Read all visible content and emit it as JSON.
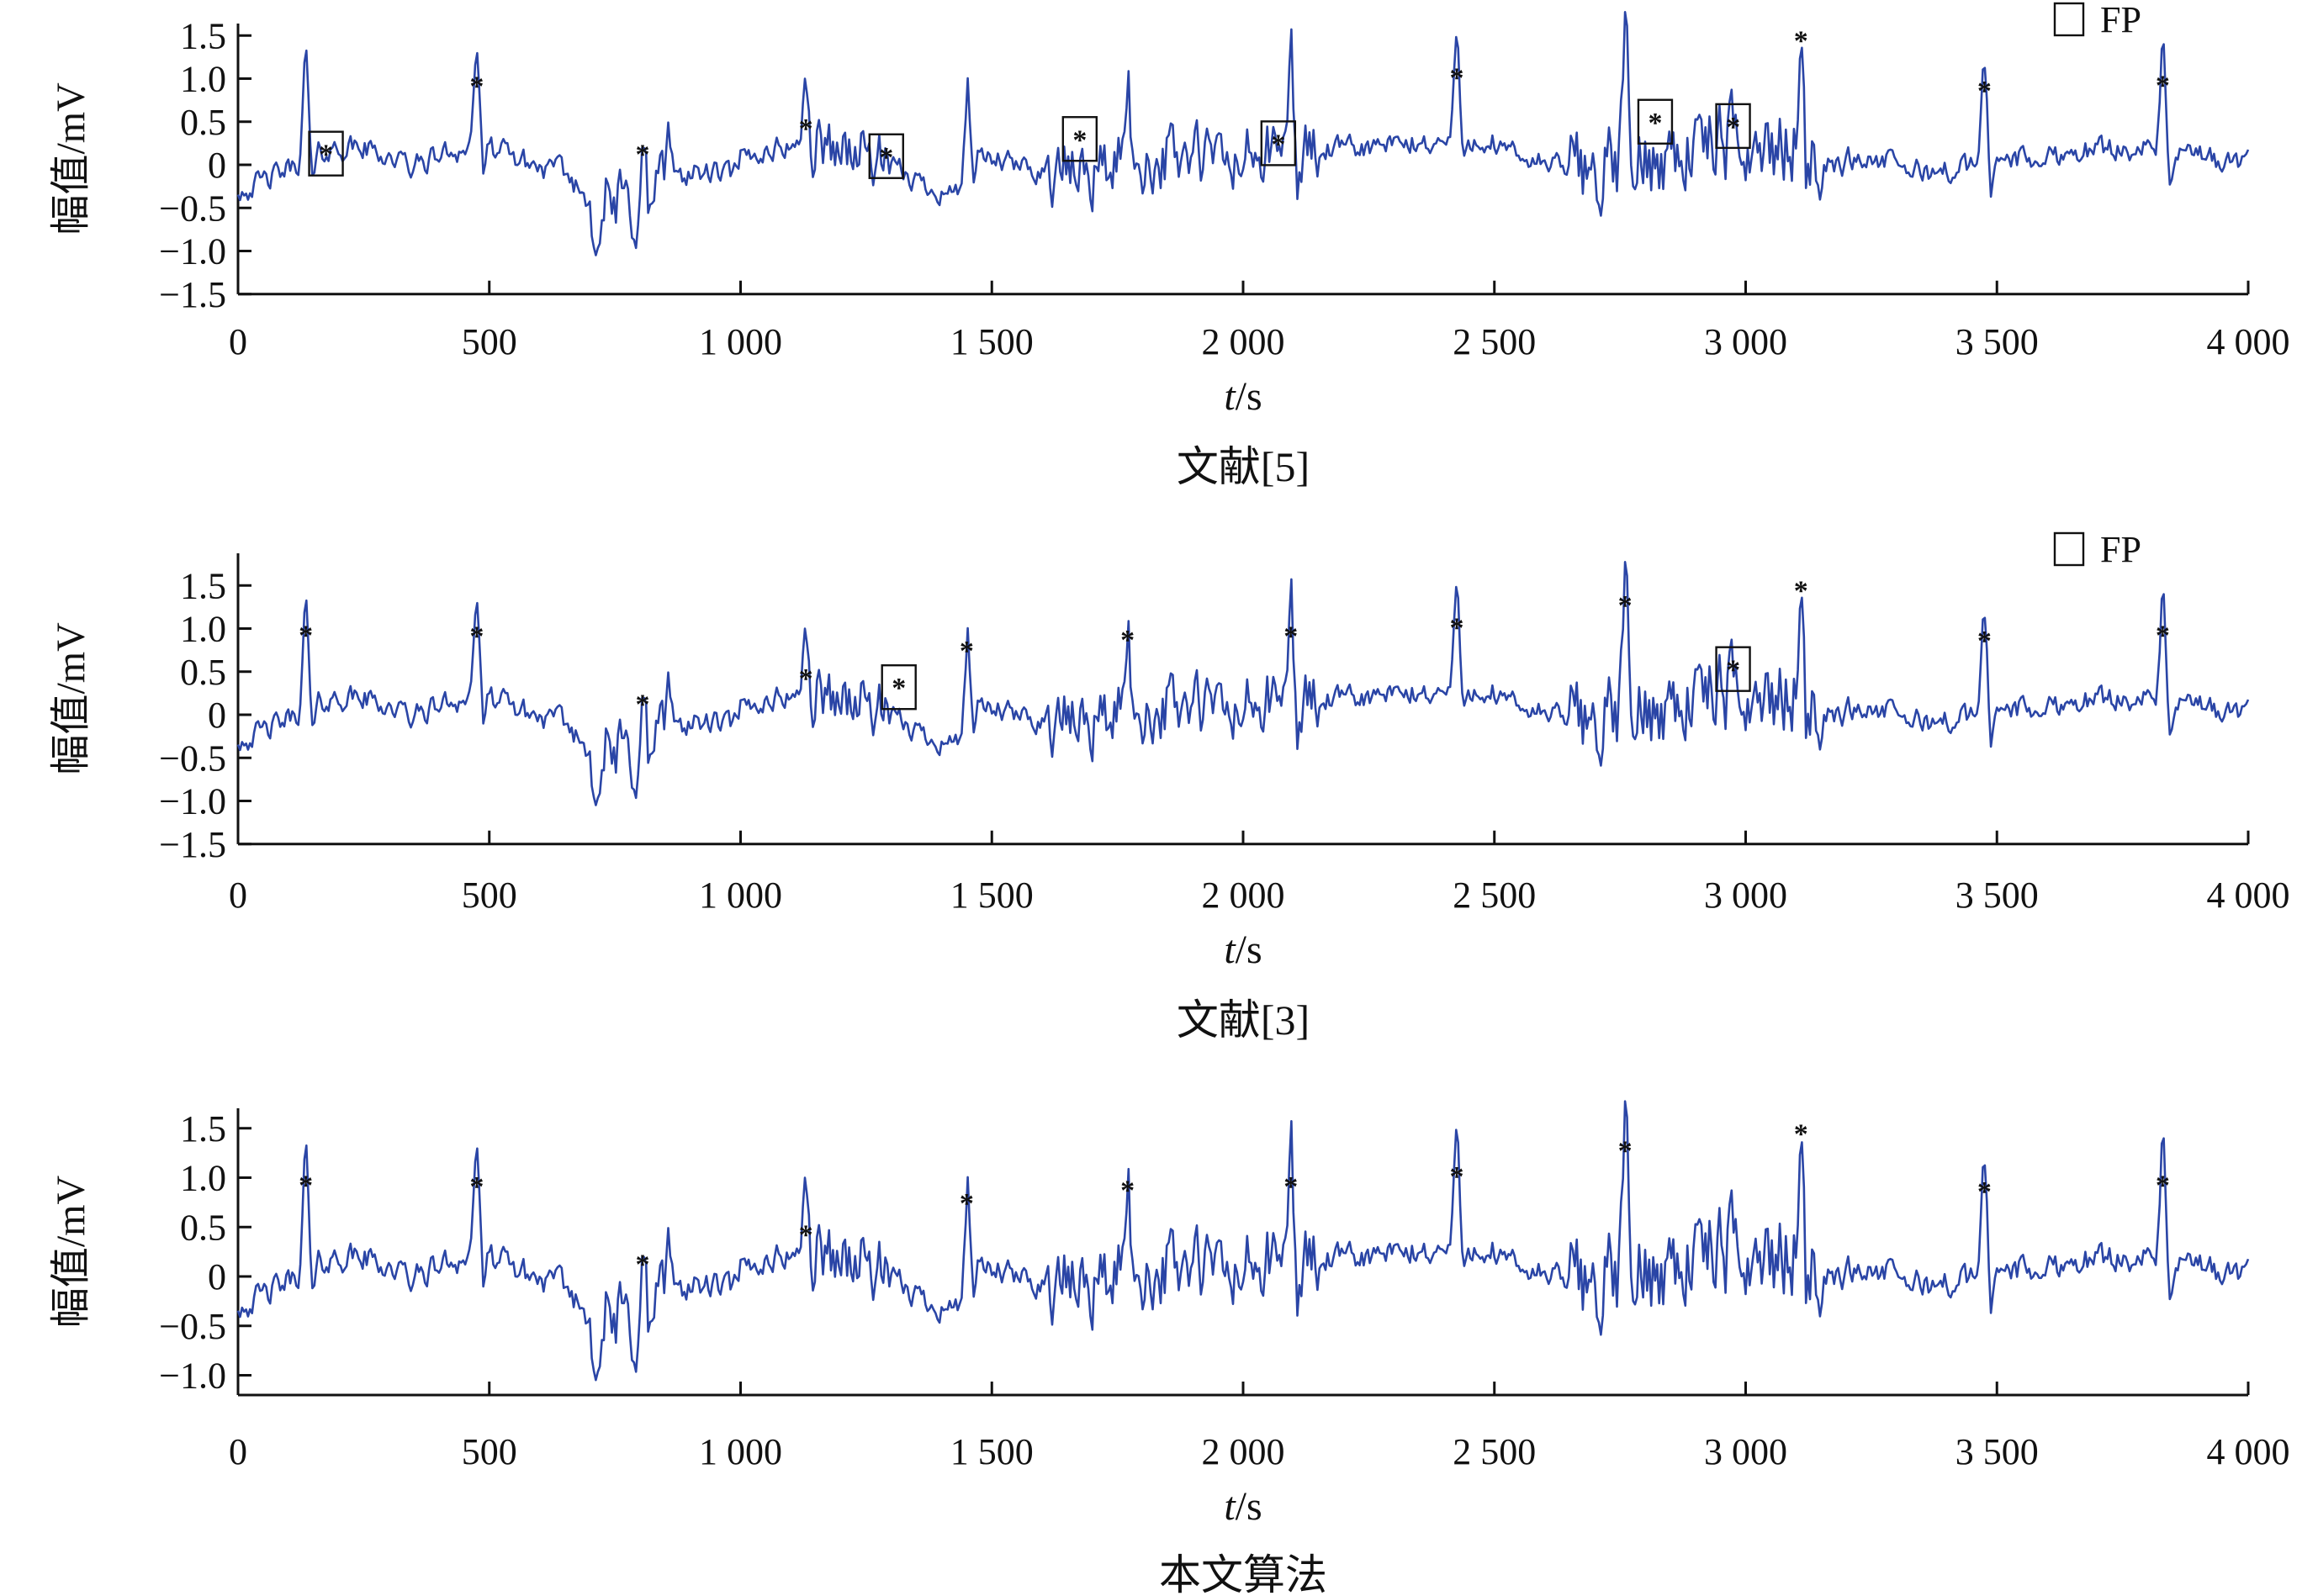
{
  "colors": {
    "signal": "#2a45a6",
    "peak_marker": "#e0202a",
    "axis": "#111111",
    "fp_box": "#111111"
  },
  "chart_data": [
    {
      "type": "line",
      "caption": "文献[5]",
      "xlabel_italic": "t",
      "xlabel_unit": "/s",
      "ylabel": "幅值/mV",
      "xlim": [
        0,
        4000
      ],
      "ylim": [
        -1.5,
        1.85
      ],
      "x_ticks": [
        0,
        500,
        1000,
        1500,
        2000,
        2500,
        3000,
        3500,
        4000
      ],
      "x_tick_labels": [
        "0",
        "500",
        "1 000",
        "1 500",
        "2 000",
        "2 500",
        "3 000",
        "3 500",
        "4 000"
      ],
      "y_ticks": [
        1.5,
        1.0,
        0.5,
        0,
        -0.5,
        -1.0,
        -1.5
      ],
      "y_tick_labels": [
        "1.5",
        "1.0",
        "0.5",
        "0",
        "−0.5",
        "−1.0",
        "−1.5"
      ],
      "legend": {
        "label": "FP",
        "marker": "open-square",
        "position": "top-right"
      },
      "series": [
        {
          "name": "",
          "kind": "ecg-signal"
        },
        {
          "name": "",
          "kind": "detected-peaks",
          "marker": "*",
          "x": [
            175,
            475,
            805,
            1130,
            1290,
            1675,
            2070,
            2425,
            2820,
            2975,
            3110,
            3475,
            3830
          ],
          "y": [
            0.13,
            0.92,
            0.13,
            0.43,
            0.1,
            0.3,
            0.25,
            1.02,
            0.5,
            0.45,
            1.45,
            0.87,
            0.93
          ]
        },
        {
          "name": "FP",
          "kind": "false-positive-boxes",
          "x": [
            175,
            1290,
            1675,
            2070,
            2820,
            2975
          ],
          "y": [
            0.13,
            0.1,
            0.3,
            0.25,
            0.5,
            0.45
          ]
        }
      ]
    },
    {
      "type": "line",
      "caption": "文献[3]",
      "xlabel_italic": "t",
      "xlabel_unit": "/s",
      "ylabel": "幅值/mV",
      "xlim": [
        0,
        4000
      ],
      "ylim": [
        -1.5,
        1.85
      ],
      "x_ticks": [
        0,
        500,
        1000,
        1500,
        2000,
        2500,
        3000,
        3500,
        4000
      ],
      "x_tick_labels": [
        "0",
        "500",
        "1 000",
        "1 500",
        "2 000",
        "2 500",
        "3 000",
        "3 500",
        "4 000"
      ],
      "y_ticks": [
        1.5,
        1.0,
        0.5,
        0,
        -0.5,
        -1.0,
        -1.5
      ],
      "y_tick_labels": [
        "1.5",
        "1.0",
        "0.5",
        "0",
        "−0.5",
        "−1.0",
        "−1.5"
      ],
      "legend": {
        "label": "FP",
        "marker": "open-square",
        "position": "top-right"
      },
      "series": [
        {
          "name": "",
          "kind": "ecg-signal"
        },
        {
          "name": "",
          "kind": "detected-peaks",
          "marker": "*",
          "x": [
            135,
            475,
            805,
            1130,
            1315,
            1450,
            1770,
            2095,
            2425,
            2760,
            2975,
            3110,
            3475,
            3830
          ],
          "y": [
            0.93,
            0.92,
            0.13,
            0.43,
            0.32,
            0.75,
            0.88,
            0.92,
            1.02,
            1.28,
            0.53,
            1.45,
            0.87,
            0.93
          ]
        },
        {
          "name": "FP",
          "kind": "false-positive-boxes",
          "x": [
            1315,
            2975
          ],
          "y": [
            0.32,
            0.53
          ]
        }
      ]
    },
    {
      "type": "line",
      "caption": "本文算法",
      "xlabel_italic": "t",
      "xlabel_unit": "/s",
      "ylabel": "幅值/mV",
      "xlim": [
        0,
        4000
      ],
      "ylim": [
        -1.2,
        1.7
      ],
      "x_ticks": [
        0,
        500,
        1000,
        1500,
        2000,
        2500,
        3000,
        3500,
        4000
      ],
      "x_tick_labels": [
        "0",
        "500",
        "1 000",
        "1 500",
        "2 000",
        "2 500",
        "3 000",
        "3 500",
        "4 000"
      ],
      "y_ticks": [
        1.5,
        1.0,
        0.5,
        0,
        -0.5,
        -1.0
      ],
      "y_tick_labels": [
        "1.5",
        "1.0",
        "0.5",
        "0",
        "−0.5",
        "−1.0"
      ],
      "series": [
        {
          "name": "",
          "kind": "ecg-signal"
        },
        {
          "name": "",
          "kind": "detected-peaks",
          "marker": "*",
          "x": [
            135,
            475,
            805,
            1130,
            1450,
            1770,
            2095,
            2425,
            2760,
            3110,
            3475,
            3830
          ],
          "y": [
            0.93,
            0.92,
            0.13,
            0.43,
            0.75,
            0.88,
            0.92,
            1.02,
            1.28,
            1.45,
            0.87,
            0.93
          ]
        }
      ]
    }
  ]
}
